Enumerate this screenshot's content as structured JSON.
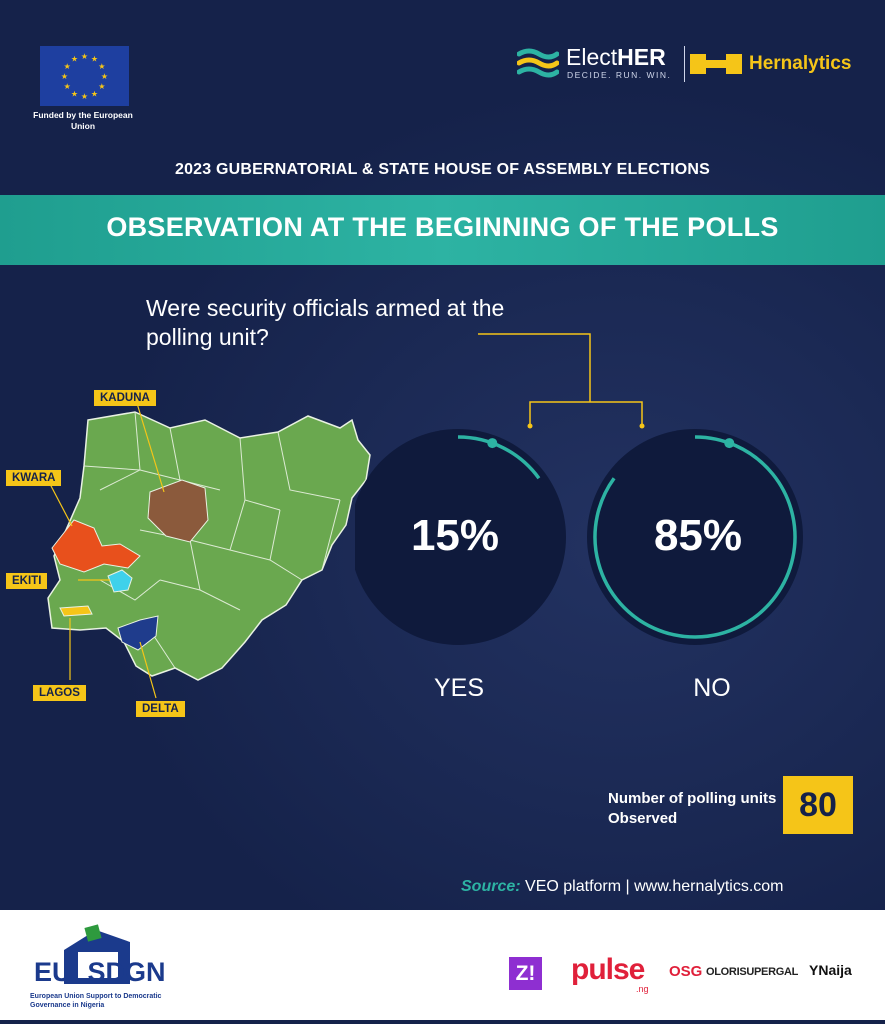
{
  "header": {
    "eu_caption": "Funded by the European Union",
    "electher_name_light": "Elect",
    "electher_name_bold": "HER",
    "electher_tagline": "DECIDE. RUN. WIN.",
    "hernalytics_name": "Hernalytics"
  },
  "subtitle": "2023 GUBERNATORIAL & STATE HOUSE OF ASSEMBLY ELECTIONS",
  "banner_title": "OBSERVATION AT THE BEGINNING OF THE POLLS",
  "question": "Were security officials armed at the polling unit?",
  "map": {
    "states": [
      {
        "name": "KADUNA",
        "color": "#8b5a3c"
      },
      {
        "name": "KWARA",
        "color": "#e8501c"
      },
      {
        "name": "EKITI",
        "color": "#3fd1ea"
      },
      {
        "name": "LAGOS",
        "color": "#f5c518"
      },
      {
        "name": "DELTA",
        "color": "#1f3c8c"
      }
    ],
    "base_color": "#6aa84f"
  },
  "chart_data": {
    "type": "pie",
    "categories": [
      "YES",
      "NO"
    ],
    "values": [
      15,
      85
    ],
    "value_labels": [
      "15%",
      "85%"
    ],
    "unit": "%"
  },
  "polling_units": {
    "label": "Number of polling units Observed",
    "value": "80"
  },
  "source": {
    "key": "Source:",
    "text": "VEO platform | www.hernalytics.com"
  },
  "footer": {
    "eu_sdgn_left": "EU",
    "eu_sdgn_right": "SDGN",
    "eu_sdgn_sub": "European Union Support to Democratic Governance in Nigeria",
    "partners": [
      "Z!",
      "pulse",
      ".ng",
      "OSG",
      "OLORISUPERGAL",
      "YNaija"
    ]
  },
  "colors": {
    "background": "#15224a",
    "accent_teal": "#2db3a3",
    "accent_yellow": "#f5c518"
  }
}
